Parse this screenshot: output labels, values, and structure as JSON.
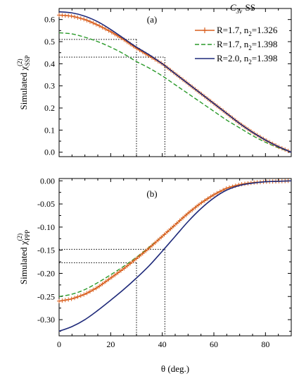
{
  "chart_data": [
    {
      "type": "line",
      "panel_label": "(a)",
      "ylabel": "Simulated χ",
      "ylabel_sup": "(2)",
      "ylabel_sub": "SSP",
      "xlim": [
        0,
        90
      ],
      "ylim": [
        -0.02,
        0.65
      ],
      "yticks": [
        "0.0",
        "0.1",
        "0.2",
        "0.3",
        "0.4",
        "0.5",
        "0.6"
      ],
      "ytick_values": [
        0.0,
        0.1,
        0.2,
        0.3,
        0.4,
        0.5,
        0.6
      ],
      "legend_title": "C3v-SS",
      "legend_title_main": "C",
      "legend_title_sub": "3v",
      "legend_title_tail": "-SS",
      "legend_position": "top-right",
      "x": [
        0,
        5,
        10,
        15,
        20,
        25,
        30,
        35,
        40,
        45,
        50,
        55,
        60,
        65,
        70,
        75,
        80,
        85,
        90
      ],
      "series": [
        {
          "name": "R=1.7, n2=1.326",
          "label_main": "R=1.7, n",
          "label_sub": "2",
          "label_tail": "=1.326",
          "color": "#d95f1e",
          "style": "solid-plus",
          "values": [
            0.62,
            0.615,
            0.6,
            0.575,
            0.545,
            0.51,
            0.47,
            0.435,
            0.4,
            0.355,
            0.31,
            0.265,
            0.22,
            0.175,
            0.13,
            0.09,
            0.055,
            0.025,
            0.0
          ]
        },
        {
          "name": "R=1.7, n2=1.398",
          "label_main": "R=1.7, n",
          "label_sub": "2",
          "label_tail": "=1.398",
          "color": "#2a9a2a",
          "style": "dashed",
          "values": [
            0.54,
            0.535,
            0.52,
            0.5,
            0.475,
            0.445,
            0.41,
            0.38,
            0.345,
            0.305,
            0.265,
            0.225,
            0.185,
            0.145,
            0.11,
            0.075,
            0.045,
            0.02,
            0.0
          ]
        },
        {
          "name": "R=2.0, n2=1.398",
          "label_main": "R=2.0, n",
          "label_sub": "2",
          "label_tail": "=1.398",
          "color": "#1f2a7a",
          "style": "solid",
          "values": [
            0.635,
            0.63,
            0.615,
            0.59,
            0.555,
            0.515,
            0.475,
            0.44,
            0.4,
            0.355,
            0.31,
            0.265,
            0.22,
            0.175,
            0.13,
            0.09,
            0.055,
            0.025,
            0.0
          ]
        }
      ],
      "guides": [
        {
          "x": 30,
          "y": 0.51
        },
        {
          "x": 41,
          "y": 0.43
        }
      ]
    },
    {
      "type": "line",
      "panel_label": "(b)",
      "ylabel": "Simulated χ",
      "ylabel_sup": "(2)",
      "ylabel_sub": "PPP",
      "xlabel": "θ (deg.)",
      "xlim": [
        0,
        90
      ],
      "ylim": [
        -0.335,
        0.005
      ],
      "xticks": [
        "0",
        "20",
        "40",
        "60",
        "80"
      ],
      "xtick_values": [
        0,
        20,
        40,
        60,
        80
      ],
      "yticks": [
        "0.00",
        "-0.05",
        "-0.10",
        "-0.15",
        "-0.20",
        "-0.25",
        "-0.30"
      ],
      "ytick_values": [
        0.0,
        -0.05,
        -0.1,
        -0.15,
        -0.2,
        -0.25,
        -0.3
      ],
      "x": [
        0,
        5,
        10,
        15,
        20,
        25,
        30,
        35,
        40,
        45,
        50,
        55,
        60,
        65,
        70,
        75,
        80,
        85,
        90
      ],
      "series": [
        {
          "name": "R=1.7, n2=1.326",
          "color": "#d95f1e",
          "style": "solid-plus",
          "values": [
            -0.26,
            -0.255,
            -0.245,
            -0.23,
            -0.21,
            -0.19,
            -0.168,
            -0.145,
            -0.12,
            -0.095,
            -0.07,
            -0.048,
            -0.03,
            -0.016,
            -0.008,
            -0.004,
            -0.002,
            -0.001,
            0.0
          ]
        },
        {
          "name": "R=1.7, n2=1.398",
          "color": "#2a9a2a",
          "style": "dashed",
          "values": [
            -0.25,
            -0.245,
            -0.235,
            -0.22,
            -0.203,
            -0.185,
            -0.165,
            -0.143,
            -0.12,
            -0.095,
            -0.07,
            -0.048,
            -0.03,
            -0.016,
            -0.008,
            -0.004,
            -0.002,
            -0.001,
            0.0
          ]
        },
        {
          "name": "R=2.0, n2=1.398",
          "color": "#1f2a7a",
          "style": "solid",
          "values": [
            -0.325,
            -0.315,
            -0.3,
            -0.28,
            -0.258,
            -0.235,
            -0.21,
            -0.183,
            -0.152,
            -0.12,
            -0.088,
            -0.06,
            -0.037,
            -0.02,
            -0.01,
            -0.005,
            -0.002,
            -0.001,
            0.0
          ]
        }
      ],
      "guides": [
        {
          "x": 30,
          "y": -0.177
        },
        {
          "x": 41,
          "y": -0.148
        }
      ]
    }
  ]
}
